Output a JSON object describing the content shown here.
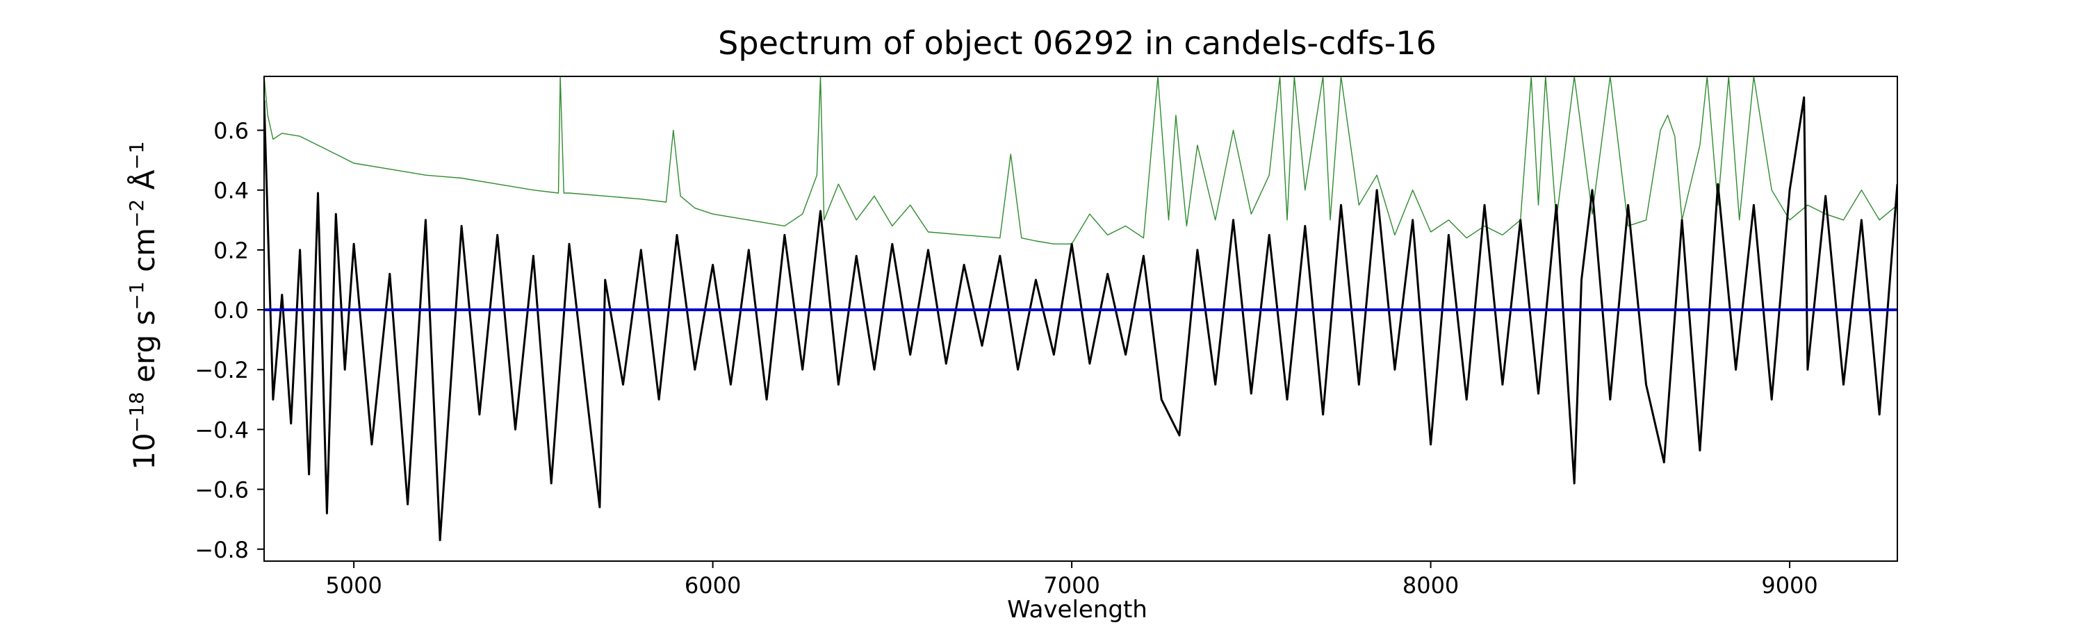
{
  "chart_data": {
    "type": "line",
    "title": "Spectrum of object 06292 in candels-cdfs-16",
    "xlabel": "Wavelength",
    "ylabel": "10^-18 erg s^-1 cm^-2 Å^-1",
    "ylabel_parts": {
      "base": "10",
      "exp1": "−18",
      "t1": " erg s",
      "exp2": "−1",
      "t2": " cm",
      "exp3": "−2",
      "t3": " Å",
      "exp4": "−1"
    },
    "xlim": [
      4750,
      9300
    ],
    "ylim": [
      -0.84,
      0.78
    ],
    "xticks": [
      5000,
      6000,
      7000,
      8000,
      9000
    ],
    "xtick_labels": [
      "5000",
      "6000",
      "7000",
      "8000",
      "9000"
    ],
    "yticks": [
      -0.8,
      -0.6,
      -0.4,
      -0.2,
      0.0,
      0.2,
      0.4,
      0.6
    ],
    "ytick_labels": [
      "−0.8",
      "−0.6",
      "−0.4",
      "−0.2",
      "0.0",
      "0.2",
      "0.4",
      "0.6"
    ],
    "grid": false,
    "legend": "none",
    "series": [
      {
        "role": "flux",
        "color": "#000000",
        "x": [
          4750,
          4775,
          4800,
          4825,
          4850,
          4875,
          4900,
          4925,
          4950,
          4975,
          5000,
          5050,
          5100,
          5150,
          5200,
          5240,
          5300,
          5350,
          5400,
          5450,
          5500,
          5550,
          5600,
          5650,
          5685,
          5700,
          5750,
          5800,
          5850,
          5900,
          5950,
          6000,
          6050,
          6100,
          6150,
          6200,
          6250,
          6300,
          6350,
          6400,
          6450,
          6500,
          6550,
          6600,
          6650,
          6700,
          6750,
          6800,
          6850,
          6900,
          6950,
          7000,
          7050,
          7100,
          7150,
          7200,
          7250,
          7300,
          7350,
          7400,
          7450,
          7500,
          7550,
          7600,
          7650,
          7700,
          7750,
          7800,
          7850,
          7900,
          7950,
          8000,
          8050,
          8100,
          8150,
          8200,
          8250,
          8300,
          8350,
          8400,
          8420,
          8450,
          8500,
          8550,
          8600,
          8650,
          8700,
          8750,
          8800,
          8850,
          8900,
          8950,
          9000,
          9040,
          9050,
          9100,
          9150,
          9200,
          9250,
          9300
        ],
        "y": [
          0.7,
          -0.3,
          0.05,
          -0.38,
          0.2,
          -0.55,
          0.39,
          -0.68,
          0.32,
          -0.2,
          0.22,
          -0.45,
          0.12,
          -0.65,
          0.3,
          -0.77,
          0.28,
          -0.35,
          0.25,
          -0.4,
          0.18,
          -0.58,
          0.22,
          -0.3,
          -0.66,
          0.1,
          -0.25,
          0.2,
          -0.3,
          0.25,
          -0.2,
          0.15,
          -0.25,
          0.2,
          -0.3,
          0.25,
          -0.2,
          0.33,
          -0.25,
          0.18,
          -0.2,
          0.22,
          -0.15,
          0.2,
          -0.18,
          0.15,
          -0.12,
          0.18,
          -0.2,
          0.1,
          -0.15,
          0.22,
          -0.18,
          0.12,
          -0.15,
          0.18,
          -0.3,
          -0.42,
          0.2,
          -0.25,
          0.3,
          -0.28,
          0.25,
          -0.3,
          0.28,
          -0.35,
          0.35,
          -0.25,
          0.4,
          -0.2,
          0.3,
          -0.45,
          0.25,
          -0.3,
          0.35,
          -0.25,
          0.3,
          -0.28,
          0.35,
          -0.58,
          0.1,
          0.4,
          -0.3,
          0.35,
          -0.25,
          -0.51,
          0.3,
          -0.47,
          0.42,
          -0.2,
          0.35,
          -0.3,
          0.4,
          0.71,
          -0.2,
          0.38,
          -0.25,
          0.3,
          -0.35,
          0.42
        ]
      },
      {
        "role": "error",
        "color": "#2e8b2e",
        "x": [
          4750,
          4760,
          4775,
          4800,
          4850,
          4900,
          4950,
          5000,
          5100,
          5200,
          5300,
          5400,
          5500,
          5570,
          5575,
          5585,
          5600,
          5700,
          5800,
          5870,
          5890,
          5910,
          5950,
          6000,
          6100,
          6200,
          6250,
          6290,
          6300,
          6310,
          6350,
          6400,
          6450,
          6500,
          6550,
          6600,
          6700,
          6800,
          6830,
          6860,
          6900,
          6950,
          7000,
          7050,
          7100,
          7150,
          7200,
          7240,
          7270,
          7290,
          7320,
          7350,
          7400,
          7450,
          7500,
          7550,
          7580,
          7600,
          7620,
          7650,
          7700,
          7720,
          7750,
          7800,
          7850,
          7900,
          7950,
          8000,
          8050,
          8100,
          8150,
          8200,
          8250,
          8280,
          8300,
          8320,
          8350,
          8400,
          8450,
          8500,
          8550,
          8600,
          8640,
          8660,
          8680,
          8700,
          8750,
          8770,
          8800,
          8830,
          8860,
          8900,
          8950,
          9000,
          9050,
          9100,
          9150,
          9200,
          9250,
          9300
        ],
        "y": [
          0.78,
          0.65,
          0.57,
          0.59,
          0.58,
          0.55,
          0.52,
          0.49,
          0.47,
          0.45,
          0.44,
          0.42,
          0.4,
          0.39,
          0.78,
          0.39,
          0.39,
          0.38,
          0.37,
          0.36,
          0.6,
          0.38,
          0.34,
          0.32,
          0.3,
          0.28,
          0.32,
          0.45,
          0.78,
          0.3,
          0.42,
          0.3,
          0.38,
          0.28,
          0.35,
          0.26,
          0.25,
          0.24,
          0.52,
          0.24,
          0.23,
          0.22,
          0.22,
          0.32,
          0.25,
          0.28,
          0.24,
          0.78,
          0.3,
          0.65,
          0.28,
          0.55,
          0.3,
          0.6,
          0.32,
          0.45,
          0.78,
          0.3,
          0.78,
          0.4,
          0.78,
          0.3,
          0.78,
          0.35,
          0.45,
          0.25,
          0.4,
          0.26,
          0.3,
          0.24,
          0.28,
          0.25,
          0.3,
          0.78,
          0.35,
          0.78,
          0.3,
          0.78,
          0.32,
          0.78,
          0.28,
          0.3,
          0.6,
          0.65,
          0.58,
          0.3,
          0.55,
          0.78,
          0.35,
          0.78,
          0.3,
          0.78,
          0.4,
          0.3,
          0.35,
          0.32,
          0.3,
          0.4,
          0.3,
          0.35
        ]
      },
      {
        "role": "zero",
        "color": "#0000cc",
        "x": [
          4750,
          9300
        ],
        "y": [
          0.0,
          0.0
        ]
      }
    ]
  }
}
